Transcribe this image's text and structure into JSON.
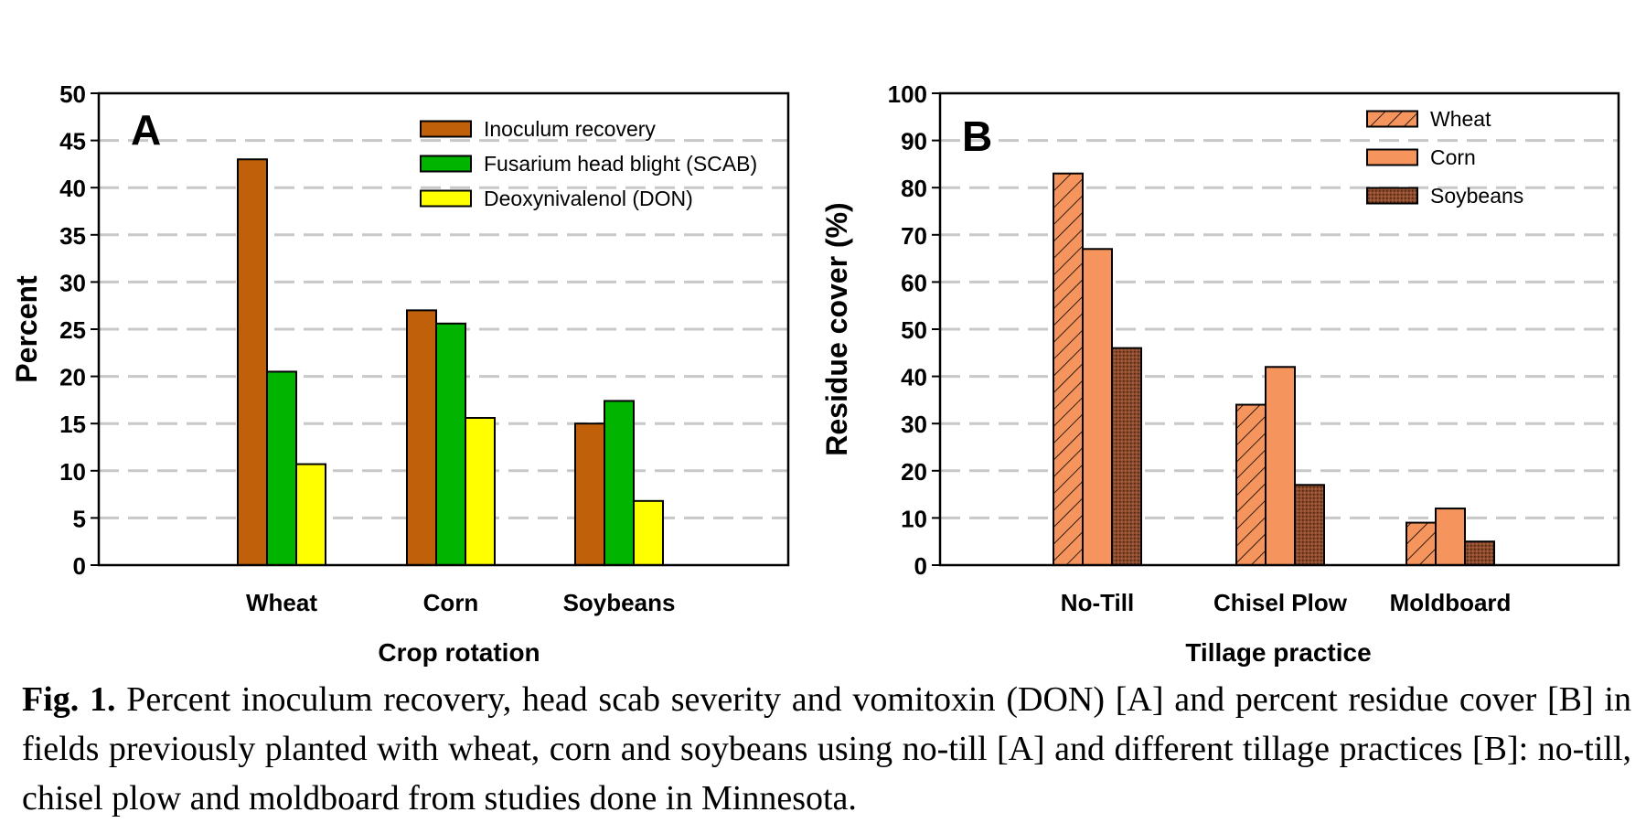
{
  "chart_data": [
    {
      "type": "bar",
      "panel_label": "A",
      "categories": [
        "Wheat",
        "Corn",
        "Soybeans"
      ],
      "series": [
        {
          "name": "Inoculum recovery",
          "values": [
            43,
            27,
            15
          ],
          "color": "#c0600a"
        },
        {
          "name": "Fusarium head blight (SCAB)",
          "values": [
            20.5,
            25.6,
            17.4
          ],
          "color": "#00b400"
        },
        {
          "name": "Deoxynivalenol (DON)",
          "values": [
            10.7,
            15.6,
            6.8
          ],
          "color": "#ffff00"
        }
      ],
      "xlabel": "Crop rotation",
      "ylabel": "Percent",
      "ylim": [
        0,
        50
      ],
      "yticks": [
        0,
        5,
        10,
        15,
        20,
        25,
        30,
        35,
        40,
        45,
        50
      ],
      "grid": "horizontal dashed",
      "legend": "top-right"
    },
    {
      "type": "bar",
      "panel_label": "B",
      "categories": [
        "No-Till",
        "Chisel Plow",
        "Moldboard"
      ],
      "series": [
        {
          "name": "Wheat",
          "values": [
            83,
            34,
            9
          ],
          "color": "#f5945c",
          "pattern": "hatch"
        },
        {
          "name": "Corn",
          "values": [
            67,
            42,
            12
          ],
          "color": "#f5945c"
        },
        {
          "name": "Soybeans",
          "values": [
            46,
            17,
            5
          ],
          "color": "#8b4a2b",
          "pattern": "dots"
        }
      ],
      "xlabel": "Tillage practice",
      "ylabel": "Residue cover (%)",
      "ylim": [
        0,
        100
      ],
      "yticks": [
        0,
        10,
        20,
        30,
        40,
        50,
        60,
        70,
        80,
        90,
        100
      ],
      "grid": "horizontal dashed",
      "legend": "top-right"
    }
  ],
  "caption": {
    "label": "Fig. 1.",
    "text": " Percent inoculum recovery, head scab severity and vomitoxin (DON) [A] and percent residue cover [B] in fields previously planted with wheat, corn and soybeans using no-till [A] and different tillage practices [B]: no-till, chisel plow and moldboard from studies done in Minnesota."
  }
}
